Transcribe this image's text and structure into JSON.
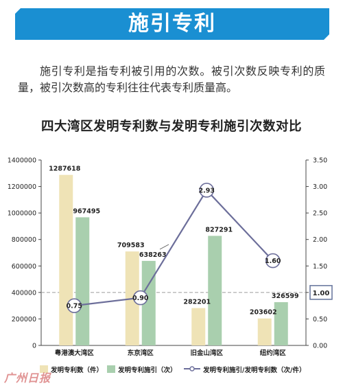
{
  "banner": {
    "title": "施引专利",
    "color": "#1a8fd2"
  },
  "intro": {
    "text": "施引专利是指专利被引用的次数。被引次数反映专利的质量，被引次数高的专利往往代表专利质量高。"
  },
  "watermark": {
    "text": "广州日报"
  },
  "chart_data": {
    "type": "bar",
    "title": "四大湾区发明专利数与发明专利施引次数对比",
    "categories": [
      "粤港澳大湾区",
      "东京湾区",
      "旧金山湾区",
      "纽约湾区"
    ],
    "series": [
      {
        "name": "发明专利数（件）",
        "type": "bar",
        "axis": "left",
        "color": "#efe3b6",
        "values": [
          1287618,
          709583,
          282201,
          203602
        ]
      },
      {
        "name": "发明专利施引（次）",
        "type": "bar",
        "axis": "left",
        "color": "#a9cfae",
        "values": [
          967495,
          638263,
          827291,
          326599
        ]
      },
      {
        "name": "发明专利施引/发明专利数（次/件）",
        "type": "line",
        "axis": "right",
        "color": "#6c6e9a",
        "values": [
          0.75,
          0.9,
          2.93,
          1.6
        ]
      }
    ],
    "y_left": {
      "min": 0,
      "max": 1400000,
      "ticks": [
        0,
        200000,
        400000,
        600000,
        800000,
        1000000,
        1200000,
        1400000
      ]
    },
    "y_right": {
      "min": 0,
      "max": 3.5,
      "ticks": [
        "0.00",
        "0.50",
        "1.00",
        "1.50",
        "2.00",
        "2.50",
        "3.00",
        "3.50"
      ]
    },
    "reference_line": {
      "axis": "right",
      "value": 1.0,
      "label": "1.00"
    },
    "bar_labels": [
      [
        "1287618",
        "967495"
      ],
      [
        "709583",
        "638263"
      ],
      [
        "282201",
        "827291"
      ],
      [
        "203602",
        "326599"
      ]
    ],
    "line_labels": [
      "0.75",
      "0.90",
      "2.93",
      "1.60"
    ],
    "legend": {
      "position": "bottom"
    }
  }
}
